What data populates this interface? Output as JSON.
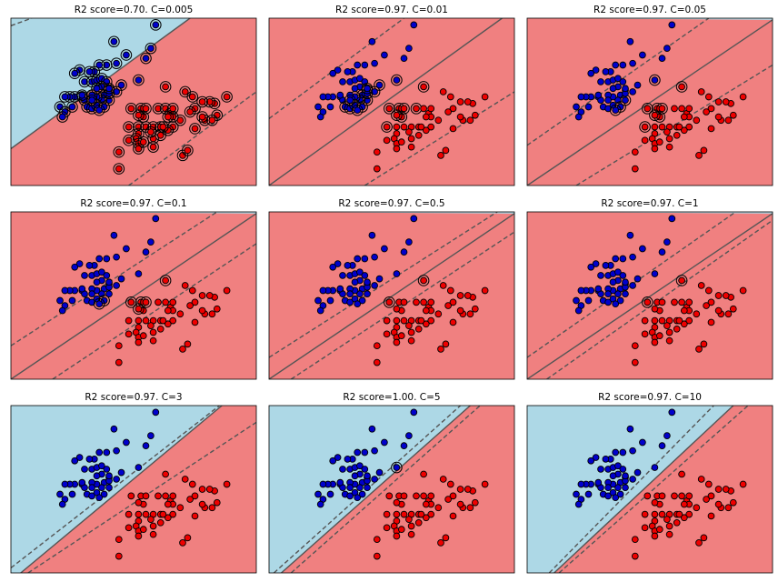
{
  "colors": {
    "class_region_blue": "#add8e6",
    "class_region_red": "#f08080",
    "point_blue": "#0000cc",
    "point_red": "#ee0000",
    "point_edge": "#000000",
    "boundary": "#555555",
    "frame": "#000000"
  },
  "chart_data": [
    {
      "type": "scatter",
      "title": "R2 score=0.70. C=0.005",
      "C": 0.005,
      "score": 0.7,
      "boundary": {
        "x": [
          0.0,
          0.73
        ],
        "y": [
          0.22,
          1.0
        ]
      },
      "margin_upper": {
        "x": [
          0.0,
          0.085
        ],
        "y": [
          0.955,
          1.0
        ]
      },
      "margin_lower": {
        "x": [
          0.48,
          1.0
        ],
        "y": [
          0.0,
          0.56
        ]
      },
      "sv_rule": {
        "type": "all"
      }
    },
    {
      "type": "scatter",
      "title": "R2 score=0.97. C=0.01",
      "C": 0.01,
      "score": 0.97,
      "boundary": {
        "x": [
          0.0,
          0.95
        ],
        "y": [
          0.0,
          1.0
        ]
      },
      "margin_upper": {
        "x": [
          0.0,
          0.55
        ],
        "y": [
          0.4,
          1.0
        ]
      },
      "margin_lower": {
        "x": [
          0.39,
          1.0
        ],
        "y": [
          0.0,
          0.56
        ]
      },
      "sv_rule": {
        "type": "offset",
        "threshold": 0.12
      }
    },
    {
      "type": "scatter",
      "title": "R2 score=0.97. C=0.05",
      "C": 0.05,
      "score": 0.97,
      "boundary": {
        "x": [
          0.0,
          1.0
        ],
        "y": [
          0.0,
          0.99
        ]
      },
      "margin_upper": {
        "x": [
          0.0,
          0.74
        ],
        "y": [
          0.24,
          1.0
        ]
      },
      "margin_lower": {
        "x": [
          0.2,
          1.0
        ],
        "y": [
          0.0,
          0.72
        ]
      },
      "sv_rule": {
        "type": "offset",
        "threshold": 0.09
      }
    },
    {
      "type": "scatter",
      "title": "R2 score=0.97. C=0.1",
      "C": 0.1,
      "score": 0.97,
      "boundary": {
        "x": [
          0.0,
          1.0
        ],
        "y": [
          0.0,
          0.99
        ]
      },
      "margin_upper": {
        "x": [
          0.0,
          0.84
        ],
        "y": [
          0.2,
          1.0
        ]
      },
      "margin_lower": {
        "x": [
          0.17,
          1.0
        ],
        "y": [
          0.0,
          0.81
        ]
      },
      "sv_rule": {
        "type": "offset",
        "threshold": 0.075
      }
    },
    {
      "type": "scatter",
      "title": "R2 score=0.97. C=0.5",
      "C": 0.5,
      "score": 0.97,
      "boundary": {
        "x": [
          0.0,
          1.0
        ],
        "y": [
          0.0,
          0.99
        ]
      },
      "margin_upper": {
        "x": [
          0.0,
          0.93
        ],
        "y": [
          0.13,
          1.0
        ]
      },
      "margin_lower": {
        "x": [
          0.09,
          1.0
        ],
        "y": [
          0.0,
          0.88
        ]
      },
      "sv_rule": {
        "type": "offset",
        "threshold": 0.035
      }
    },
    {
      "type": "scatter",
      "title": "R2 score=0.97. C=1",
      "C": 1,
      "score": 0.97,
      "boundary": {
        "x": [
          0.0,
          1.0
        ],
        "y": [
          0.0,
          0.99
        ]
      },
      "margin_upper": {
        "x": [
          0.0,
          0.85
        ],
        "y": [
          0.13,
          1.0
        ]
      },
      "margin_lower": {
        "x": [
          0.08,
          1.0
        ],
        "y": [
          0.0,
          0.95
        ]
      },
      "sv_rule": {
        "type": "offset",
        "threshold": 0.03
      }
    },
    {
      "type": "scatter",
      "title": "R2 score=0.97. C=3",
      "C": 3,
      "score": 0.97,
      "boundary": {
        "x": [
          0.04,
          0.86
        ],
        "y": [
          0.0,
          1.0
        ]
      },
      "margin_upper": {
        "x": [
          0.0,
          0.85
        ],
        "y": [
          0.03,
          1.0
        ]
      },
      "margin_lower": {
        "x": [
          0.07,
          1.0
        ],
        "y": [
          0.0,
          0.9
        ]
      },
      "sv_rule": {
        "type": "offset",
        "threshold": 0.02
      }
    },
    {
      "type": "scatter",
      "title": "R2 score=1.00. C=5",
      "C": 5,
      "score": 1.0,
      "boundary": {
        "x": [
          0.05,
          0.82
        ],
        "y": [
          0.0,
          1.0
        ]
      },
      "margin_upper": {
        "x": [
          0.02,
          0.78
        ],
        "y": [
          0.0,
          1.0
        ]
      },
      "margin_lower": {
        "x": [
          0.09,
          0.86
        ],
        "y": [
          0.0,
          1.0
        ]
      },
      "sv_rule": {
        "type": "offset",
        "threshold": 0.015
      }
    },
    {
      "type": "scatter",
      "title": "R2 score=0.97. C=10",
      "C": 10,
      "score": 0.97,
      "boundary": {
        "x": [
          0.11,
          0.84
        ],
        "y": [
          0.0,
          1.0
        ]
      },
      "margin_upper": {
        "x": [
          0.09,
          0.76
        ],
        "y": [
          0.0,
          1.0
        ]
      },
      "margin_lower": {
        "x": [
          0.13,
          0.9
        ],
        "y": [
          0.0,
          1.0
        ]
      },
      "sv_rule": {
        "type": "offset",
        "threshold": 0.012
      }
    }
  ],
  "scatter_points": {
    "blue": [
      [
        0.59,
        0.96
      ],
      [
        0.42,
        0.86
      ],
      [
        0.57,
        0.82
      ],
      [
        0.55,
        0.76
      ],
      [
        0.47,
        0.78
      ],
      [
        0.43,
        0.73
      ],
      [
        0.39,
        0.72
      ],
      [
        0.36,
        0.72
      ],
      [
        0.34,
        0.68
      ],
      [
        0.28,
        0.69
      ],
      [
        0.26,
        0.67
      ],
      [
        0.32,
        0.68
      ],
      [
        0.3,
        0.62
      ],
      [
        0.33,
        0.62
      ],
      [
        0.35,
        0.63
      ],
      [
        0.37,
        0.64
      ],
      [
        0.39,
        0.62
      ],
      [
        0.45,
        0.6
      ],
      [
        0.52,
        0.63
      ],
      [
        0.37,
        0.59
      ],
      [
        0.4,
        0.57
      ],
      [
        0.43,
        0.56
      ],
      [
        0.38,
        0.54
      ],
      [
        0.4,
        0.51
      ],
      [
        0.37,
        0.51
      ],
      [
        0.35,
        0.53
      ],
      [
        0.33,
        0.54
      ],
      [
        0.29,
        0.53
      ],
      [
        0.3,
        0.51
      ],
      [
        0.26,
        0.53
      ],
      [
        0.24,
        0.53
      ],
      [
        0.22,
        0.53
      ],
      [
        0.2,
        0.47
      ],
      [
        0.22,
        0.44
      ],
      [
        0.25,
        0.47
      ],
      [
        0.31,
        0.47
      ],
      [
        0.33,
        0.46
      ],
      [
        0.35,
        0.48
      ],
      [
        0.38,
        0.47
      ],
      [
        0.36,
        0.45
      ],
      [
        0.33,
        0.51
      ],
      [
        0.4,
        0.55
      ],
      [
        0.21,
        0.41
      ],
      [
        0.29,
        0.54
      ],
      [
        0.35,
        0.58
      ],
      [
        0.4,
        0.58
      ]
    ],
    "red": [
      [
        0.63,
        0.59
      ],
      [
        0.71,
        0.56
      ],
      [
        0.74,
        0.53
      ],
      [
        0.88,
        0.53
      ],
      [
        0.83,
        0.49
      ],
      [
        0.81,
        0.5
      ],
      [
        0.78,
        0.5
      ],
      [
        0.75,
        0.46
      ],
      [
        0.84,
        0.42
      ],
      [
        0.73,
        0.44
      ],
      [
        0.49,
        0.46
      ],
      [
        0.53,
        0.46
      ],
      [
        0.55,
        0.46
      ],
      [
        0.6,
        0.46
      ],
      [
        0.63,
        0.46
      ],
      [
        0.65,
        0.43
      ],
      [
        0.66,
        0.46
      ],
      [
        0.54,
        0.41
      ],
      [
        0.48,
        0.35
      ],
      [
        0.52,
        0.35
      ],
      [
        0.55,
        0.35
      ],
      [
        0.58,
        0.35
      ],
      [
        0.61,
        0.35
      ],
      [
        0.66,
        0.35
      ],
      [
        0.69,
        0.39
      ],
      [
        0.79,
        0.39
      ],
      [
        0.82,
        0.39
      ],
      [
        0.75,
        0.34
      ],
      [
        0.64,
        0.33
      ],
      [
        0.61,
        0.3
      ],
      [
        0.52,
        0.31
      ],
      [
        0.51,
        0.28
      ],
      [
        0.48,
        0.27
      ],
      [
        0.52,
        0.25
      ],
      [
        0.52,
        0.22
      ],
      [
        0.54,
        0.26
      ],
      [
        0.58,
        0.28
      ],
      [
        0.58,
        0.23
      ],
      [
        0.62,
        0.35
      ],
      [
        0.66,
        0.41
      ],
      [
        0.78,
        0.41
      ],
      [
        0.44,
        0.2
      ],
      [
        0.44,
        0.1
      ],
      [
        0.7,
        0.18
      ],
      [
        0.72,
        0.21
      ],
      [
        0.64,
        0.41
      ],
      [
        0.52,
        0.42
      ],
      [
        0.57,
        0.32
      ]
    ]
  }
}
